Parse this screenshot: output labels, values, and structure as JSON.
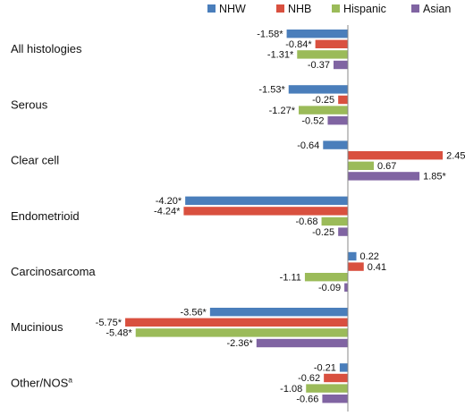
{
  "chart_data": {
    "type": "bar",
    "orientation": "horizontal",
    "title": "",
    "xlabel": "",
    "ylabel": "",
    "xlim": [
      -6.5,
      2.6
    ],
    "grid": false,
    "legend_position": "top-right",
    "categories": [
      "All histologies",
      "Serous",
      "Clear cell",
      "Endometrioid",
      "Carcinosarcoma",
      "Mucinious",
      "Other/NOS"
    ],
    "category_superscripts": [
      "",
      "",
      "",
      "",
      "",
      "",
      "a"
    ],
    "series": [
      {
        "name": "NHW",
        "color": "#4a7ebb",
        "values": [
          -1.58,
          -1.53,
          -0.64,
          -4.2,
          0.22,
          -3.56,
          -0.21
        ],
        "labels": [
          "-1.58*",
          "-1.53*",
          "-0.64",
          "-4.20*",
          "0.22",
          "-3.56*",
          "-0.21"
        ]
      },
      {
        "name": "NHB",
        "color": "#d9503f",
        "values": [
          -0.84,
          -0.25,
          2.45,
          -4.24,
          0.41,
          -5.75,
          -0.62
        ],
        "labels": [
          "-0.84*",
          "-0.25",
          "2.45",
          "-4.24*",
          "0.41",
          "-5.75*",
          "-0.62"
        ]
      },
      {
        "name": "Hispanic",
        "color": "#9bbb59",
        "values": [
          -1.31,
          -1.27,
          0.67,
          -0.68,
          -1.11,
          -5.48,
          -1.08
        ],
        "labels": [
          "-1.31*",
          "-1.27*",
          "0.67",
          "-0.68",
          "-1.11",
          "-5.48*",
          "-1.08"
        ]
      },
      {
        "name": "Asian",
        "color": "#8064a2",
        "values": [
          -0.37,
          -0.52,
          1.85,
          -0.25,
          -0.09,
          -2.36,
          -0.66
        ],
        "labels": [
          "-0.37",
          "-0.52",
          "1.85*",
          "-0.25",
          "-0.09",
          "-2.36*",
          "-0.66"
        ]
      }
    ]
  }
}
